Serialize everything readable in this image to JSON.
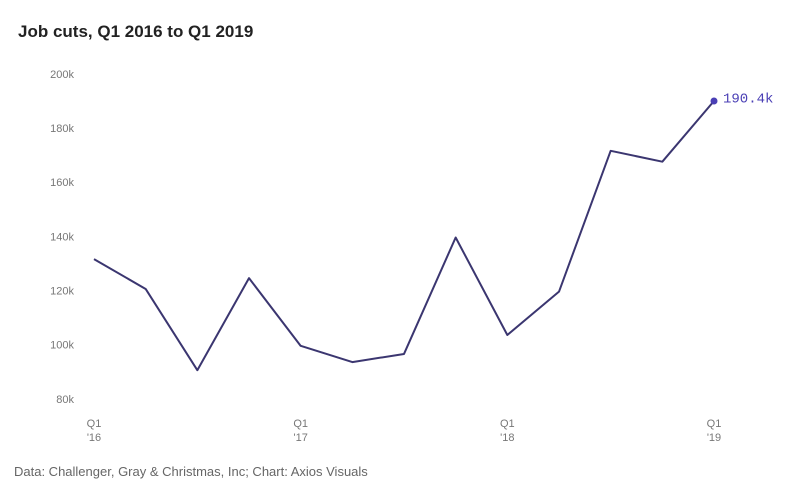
{
  "chart_data": {
    "type": "line",
    "title": "Job cuts, Q1 2016 to Q1 2019",
    "source": "Data: Challenger, Gray & Christmas, Inc; Chart: Axios Visuals",
    "categories": [
      "Q1 '16",
      null,
      null,
      null,
      "Q1 '17",
      null,
      null,
      null,
      "Q1 '18",
      null,
      null,
      null,
      "Q1 '19"
    ],
    "series": [
      {
        "name": "Job cuts",
        "color": "#3b3670",
        "values": [
          132,
          121,
          91,
          125,
          100,
          94,
          97,
          140,
          104,
          120,
          172,
          168,
          190.4
        ],
        "value_labels": [
          null,
          null,
          null,
          null,
          null,
          null,
          null,
          null,
          null,
          null,
          null,
          null,
          "190.4k"
        ]
      }
    ],
    "marker_color": "#4a3fb5",
    "ylim": [
      80,
      200
    ],
    "yticks": [
      {
        "value": 80,
        "label": "80k"
      },
      {
        "value": 100,
        "label": "100k"
      },
      {
        "value": 120,
        "label": "120k"
      },
      {
        "value": 140,
        "label": "140k"
      },
      {
        "value": 160,
        "label": "160k"
      },
      {
        "value": 180,
        "label": "180k"
      },
      {
        "value": 200,
        "label": "200k"
      }
    ],
    "grid": false
  }
}
